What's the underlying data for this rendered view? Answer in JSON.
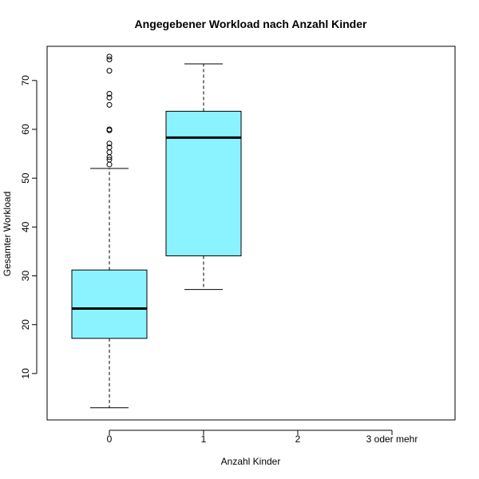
{
  "chart_data": {
    "type": "boxplot",
    "title": "Angegebener Workload nach Anzahl Kinder",
    "xlabel": "Anzahl Kinder",
    "ylabel": "Gesamter Workload",
    "categories": [
      "0",
      "1",
      "2",
      "3 oder mehr"
    ],
    "y_ticks": [
      10,
      20,
      30,
      40,
      50,
      60,
      70
    ],
    "ylim": [
      0.5,
      77
    ],
    "box_color": "#8BF3FF",
    "boxes": [
      {
        "category": "0",
        "whisker_low": 3,
        "q1": 17.2,
        "median": 23.3,
        "q3": 31.2,
        "whisker_high": 52,
        "outliers": [
          52.8,
          53.8,
          54.3,
          55.3,
          56.3,
          57.1,
          59.8,
          60.0,
          65.0,
          66.5,
          67.3,
          72.0,
          74.3,
          74.9
        ]
      },
      {
        "category": "1",
        "whisker_low": 27.2,
        "q1": 34.1,
        "median": 58.3,
        "q3": 63.7,
        "whisker_high": 73.4,
        "outliers": []
      }
    ],
    "grid": false,
    "legend": "none"
  }
}
